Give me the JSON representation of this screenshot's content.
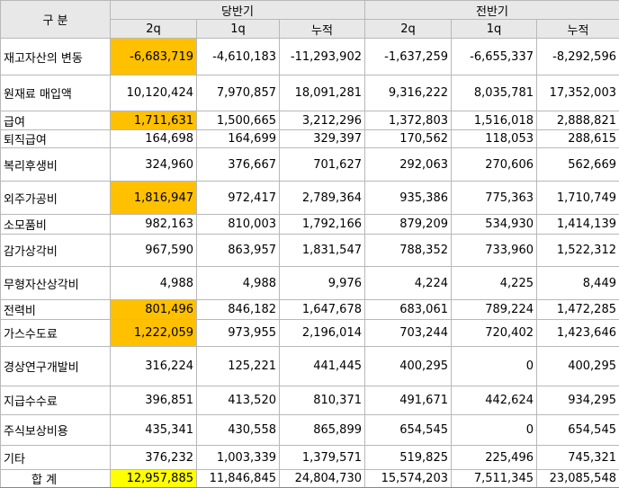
{
  "header": {
    "category": "구  분",
    "group_current": "당반기",
    "group_prior": "전반기",
    "sub": [
      "2q",
      "1q",
      "누적",
      "2q",
      "1q",
      "누적"
    ]
  },
  "rows": [
    {
      "label": "재고자산의 변동",
      "values": [
        "-6,683,719",
        "-4,610,183",
        "-11,293,902",
        "-1,637,259",
        "-6,655,337",
        "-8,292,596"
      ],
      "highlight": "orange"
    },
    {
      "label": "원재료 매입액",
      "values": [
        "10,120,424",
        "7,970,857",
        "18,091,281",
        "9,316,222",
        "8,035,781",
        "17,352,003"
      ],
      "highlight": ""
    },
    {
      "label": "급여",
      "values": [
        "1,711,631",
        "1,500,665",
        "3,212,296",
        "1,372,803",
        "1,516,018",
        "2,888,821"
      ],
      "highlight": "orange"
    },
    {
      "label": "퇴직급여",
      "values": [
        "164,698",
        "164,699",
        "329,397",
        "170,562",
        "118,053",
        "288,615"
      ],
      "highlight": ""
    },
    {
      "label": "복리후생비",
      "values": [
        "324,960",
        "376,667",
        "701,627",
        "292,063",
        "270,606",
        "562,669"
      ],
      "highlight": ""
    },
    {
      "label": "외주가공비",
      "values": [
        "1,816,947",
        "972,417",
        "2,789,364",
        "935,386",
        "775,363",
        "1,710,749"
      ],
      "highlight": "orange"
    },
    {
      "label": "소모품비",
      "values": [
        "982,163",
        "810,003",
        "1,792,166",
        "879,209",
        "534,930",
        "1,414,139"
      ],
      "highlight": ""
    },
    {
      "label": "감가상각비",
      "values": [
        "967,590",
        "863,957",
        "1,831,547",
        "788,352",
        "733,960",
        "1,522,312"
      ],
      "highlight": ""
    },
    {
      "label": "무형자산상각비",
      "values": [
        "4,988",
        "4,988",
        "9,976",
        "4,224",
        "4,225",
        "8,449"
      ],
      "highlight": ""
    },
    {
      "label": "전력비",
      "values": [
        "801,496",
        "846,182",
        "1,647,678",
        "683,061",
        "789,224",
        "1,472,285"
      ],
      "highlight": "orange"
    },
    {
      "label": "가스수도료",
      "values": [
        "1,222,059",
        "973,955",
        "2,196,014",
        "703,244",
        "720,402",
        "1,423,646"
      ],
      "highlight": "orange"
    },
    {
      "label": "경상연구개발비",
      "values": [
        "316,224",
        "125,221",
        "441,445",
        "400,295",
        "0",
        "400,295"
      ],
      "highlight": ""
    },
    {
      "label": "지급수수료",
      "values": [
        "396,851",
        "413,520",
        "810,371",
        "491,671",
        "442,624",
        "934,295"
      ],
      "highlight": ""
    },
    {
      "label": "주식보상비용",
      "values": [
        "435,341",
        "430,558",
        "865,899",
        "654,545",
        "0",
        "654,545"
      ],
      "highlight": ""
    },
    {
      "label": "기타",
      "values": [
        "376,232",
        "1,003,339",
        "1,379,571",
        "519,825",
        "225,496",
        "745,321"
      ],
      "highlight": ""
    }
  ],
  "total": {
    "label": "합  계",
    "values": [
      "12,957,885",
      "11,846,845",
      "24,804,730",
      "15,574,203",
      "7,511,345",
      "23,085,548"
    ],
    "highlight": "yellow"
  },
  "colors": {
    "orange": "#ffc000",
    "yellow": "#ffff00",
    "header_bg": "#e8e8e8"
  }
}
